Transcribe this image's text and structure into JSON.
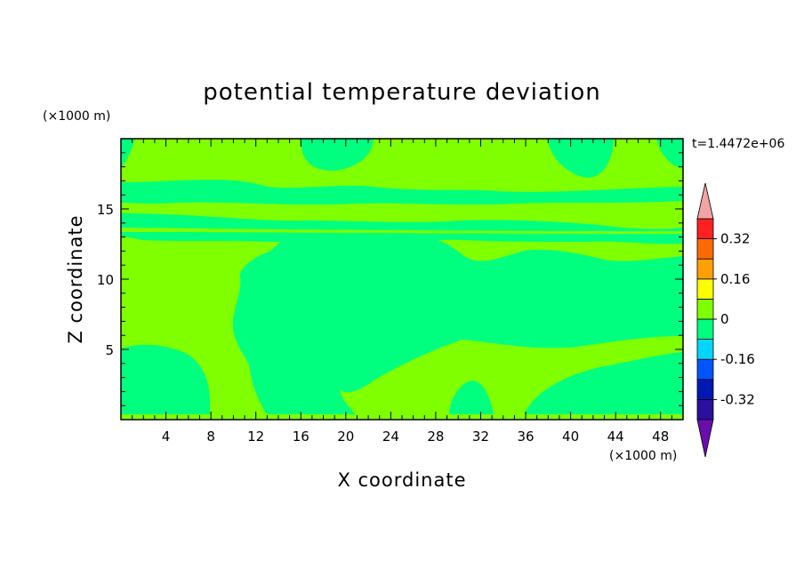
{
  "chart_data": {
    "type": "heatmap",
    "subtype": "filled-contour",
    "title": "potential temperature deviation",
    "xlabel": "X coordinate",
    "ylabel": "Z coordinate",
    "x_unit": "(×1000 m)",
    "y_unit": "(×1000 m)",
    "time_label": "t=1.4472e+06",
    "xlim": [
      0,
      50
    ],
    "ylim": [
      0,
      20
    ],
    "x_ticks": [
      4,
      8,
      12,
      16,
      20,
      24,
      28,
      32,
      36,
      40,
      44,
      48
    ],
    "y_ticks": [
      5,
      10,
      15
    ],
    "grid": false,
    "colorbar": {
      "position": "right",
      "levels": [
        -0.4,
        -0.32,
        -0.24,
        -0.16,
        -0.08,
        0,
        0.08,
        0.16,
        0.24,
        0.32,
        0.4
      ],
      "colors": [
        "#6a0dad",
        "#2b0f9e",
        "#0018b4",
        "#0055ff",
        "#00d5ff",
        "#00ff7f",
        "#80ff00",
        "#ffff00",
        "#ffa000",
        "#ff6a00",
        "#ff2020",
        "#f2a3a3"
      ],
      "labels": [
        "0.32",
        "0.16",
        "0",
        "-0.16",
        "-0.32"
      ]
    },
    "field_levels": {
      "background": "0 to 0.08",
      "regions": "-0.08 to 0"
    }
  }
}
